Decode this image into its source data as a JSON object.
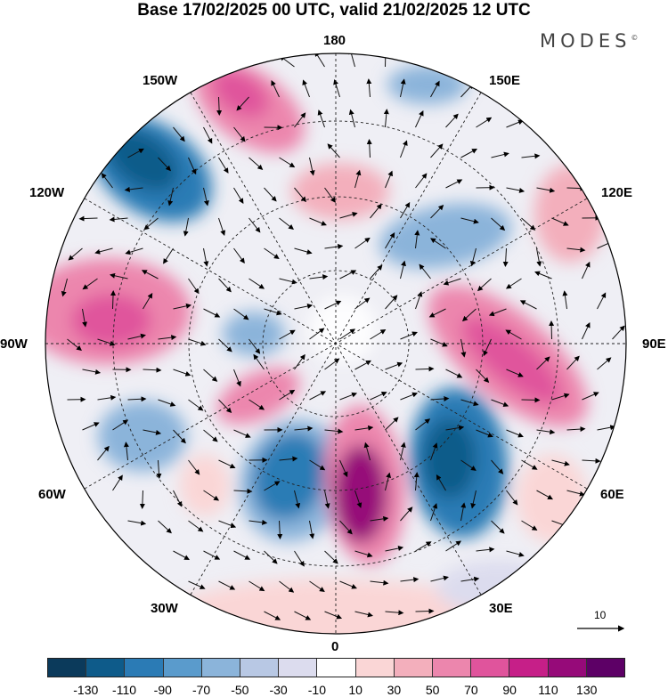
{
  "title": "Base 17/02/2025 00 UTC, valid 21/02/2025 12 UTC",
  "brand": "MODES",
  "brand_mark": "©",
  "longitude_labels": {
    "top": "180",
    "bottom": "0",
    "left": "90W",
    "right": "90E",
    "upper_left_outer": "120W",
    "upper_left_inner": "150W",
    "upper_right_inner": "150E",
    "upper_right_outer": "120E",
    "lower_left_outer": "60W",
    "lower_left_inner": "30W",
    "lower_right_inner": "30E",
    "lower_right_outer": "60E"
  },
  "reference_vector": {
    "value": "10",
    "icon": "arrow-right-icon"
  },
  "colorbar": {
    "colors": [
      "#0b3a5b",
      "#0e5b8a",
      "#2b7bb5",
      "#5a9bcc",
      "#8bb4da",
      "#b8c8e4",
      "#dcdcee",
      "#ffffff",
      "#fad6d6",
      "#f3afbc",
      "#ec86ad",
      "#e0549c",
      "#c61f88",
      "#960a79",
      "#5d0066"
    ],
    "ticks": [
      "-130",
      "-110",
      "-90",
      "-70",
      "-50",
      "-30",
      "-10",
      "10",
      "30",
      "50",
      "70",
      "90",
      "110",
      "130"
    ]
  },
  "map": {
    "projection": "north-polar-stereographic",
    "field_colors": {
      "neg_strong": "#0e5b8a",
      "neg_mid": "#2b7bb5",
      "neg_light": "#8bb4da",
      "neg_faint": "#dcdcee",
      "pos_faint": "#fad6d6",
      "pos_light": "#f3afbc",
      "pos_mid": "#ec86ad",
      "pos_strong": "#e0549c",
      "pos_deep": "#960a79"
    }
  }
}
